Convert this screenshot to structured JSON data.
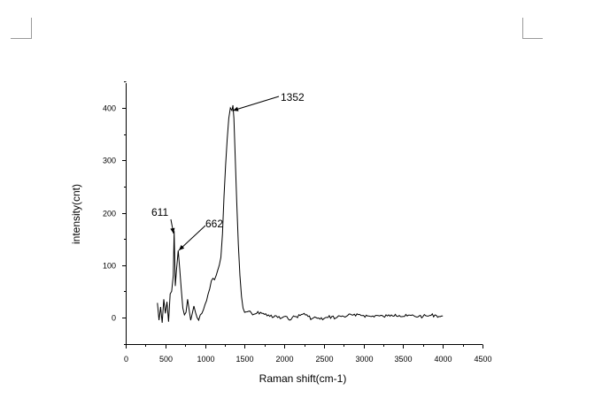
{
  "chart_data": {
    "type": "line",
    "title": "",
    "xlabel": "Raman shift(cm-1)",
    "ylabel": "intensity(cnt)",
    "xlim": [
      0,
      4500
    ],
    "ylim": [
      -50,
      450
    ],
    "xticks": [
      0,
      500,
      1000,
      1500,
      2000,
      2500,
      3000,
      3500,
      4000,
      4500
    ],
    "yticks": [
      0,
      100,
      200,
      300,
      400
    ],
    "grid": false,
    "legend": "none",
    "line_color": "#000000",
    "series": [
      {
        "x": [
          400,
          420,
          440,
          460,
          480,
          500,
          520,
          540,
          560,
          580,
          600,
          611,
          625,
          640,
          662,
          680,
          700,
          720,
          740,
          760,
          780,
          800,
          820,
          840,
          860,
          880,
          900,
          920,
          940,
          960,
          980,
          1000,
          1020,
          1040,
          1060,
          1080,
          1100,
          1120,
          1140,
          1160,
          1180,
          1200,
          1220,
          1240,
          1260,
          1280,
          1300,
          1320,
          1340,
          1352,
          1365,
          1380,
          1400,
          1420,
          1440,
          1460,
          1480,
          1500,
          1550,
          1600,
          1650,
          1700,
          1750,
          1800,
          1850,
          1900,
          1950,
          2000,
          2050,
          2100,
          2150,
          2200,
          2250,
          2300,
          2350,
          2400,
          2450,
          2500,
          2550,
          2600,
          2650,
          2700,
          2750,
          2800,
          2850,
          2900,
          2950,
          3000,
          3050,
          3100,
          3150,
          3200,
          3250,
          3300,
          3350,
          3400,
          3450,
          3500,
          3550,
          3600,
          3650,
          3700,
          3750,
          3800,
          3850,
          3900,
          3950,
          4000
        ],
        "y": [
          28,
          -5,
          20,
          -10,
          35,
          8,
          30,
          -8,
          45,
          50,
          80,
          165,
          60,
          90,
          128,
          95,
          55,
          18,
          5,
          10,
          35,
          15,
          -5,
          8,
          22,
          10,
          0,
          -5,
          5,
          8,
          15,
          25,
          32,
          45,
          55,
          70,
          75,
          72,
          80,
          90,
          100,
          115,
          160,
          230,
          290,
          340,
          380,
          400,
          395,
          405,
          380,
          310,
          220,
          140,
          80,
          40,
          18,
          10,
          12,
          5,
          8,
          10,
          6,
          5,
          0,
          3,
          -2,
          2,
          -3,
          0,
          2,
          4,
          8,
          2,
          -2,
          0,
          -3,
          -2,
          0,
          2,
          -1,
          3,
          2,
          4,
          5,
          3,
          6,
          4,
          3,
          2,
          4,
          3,
          2,
          3,
          5,
          6,
          4,
          2,
          3,
          4,
          2,
          3,
          2,
          3,
          4,
          5,
          2,
          3
        ]
      }
    ],
    "annotations": [
      {
        "text": "611",
        "x": 611,
        "y": 165
      },
      {
        "text": "662",
        "x": 662,
        "y": 128
      },
      {
        "text": "1352",
        "x": 1352,
        "y": 400
      }
    ]
  }
}
